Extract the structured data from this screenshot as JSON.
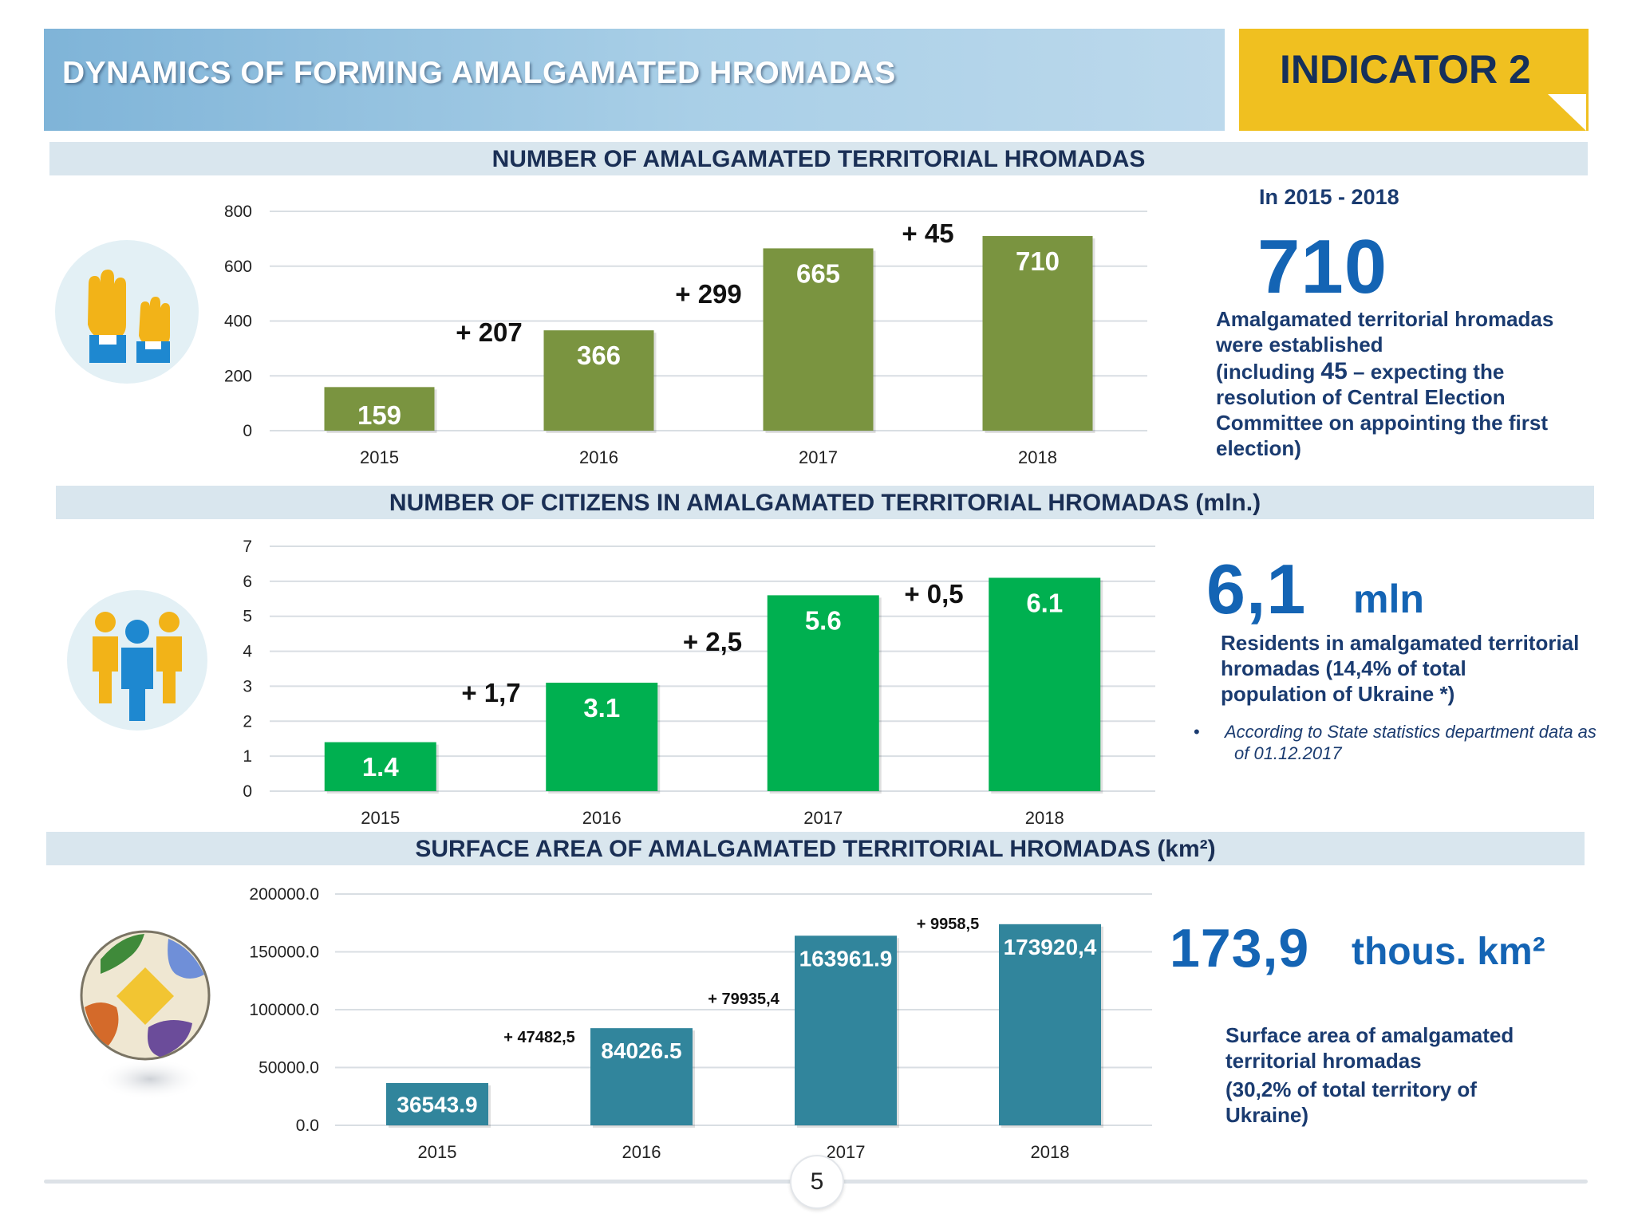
{
  "header": {
    "title": "DYNAMICS OF FORMING AMALGAMATED HROMADAS",
    "indicator": "INDICATOR 2"
  },
  "colors": {
    "green_dark": "#7a9440",
    "green_bright": "#00b050",
    "teal": "#31859c",
    "accent_blue": "#1464b4",
    "header_blue": "#8fc0e0",
    "yellow": "#f0c020"
  },
  "sections": [
    {
      "title": "NUMBER OF AMALGAMATED TERRITORIAL HROMADAS"
    },
    {
      "title": "NUMBER OF CITIZENS IN AMALGAMATED TERRITORIAL HROMADAS (mln.)"
    },
    {
      "title": "SURFACE AREA OF AMALGAMATED TERRITORIAL HROMADAS (km²)"
    }
  ],
  "stats": {
    "hromadas": {
      "period": "In 2015 - 2018",
      "value": "710",
      "desc_lines": [
        "Amalgamated territorial hromadas",
        "were established"
      ],
      "note_lines": [
        "(including ",
        "45",
        " – expecting the",
        "resolution of Central Election",
        "Committee on appointing the first",
        "election)"
      ]
    },
    "citizens": {
      "value": "6,1",
      "unit": "mln",
      "desc_lines": [
        "Residents in amalgamated territorial",
        "hromadas (14,4% of total",
        "population of Ukraine *)"
      ],
      "bullet": "•",
      "note_lines": [
        "According to State statistics department data as",
        "of 01.12.2017"
      ]
    },
    "area": {
      "value": "173,9",
      "unit": "thous. km²",
      "desc_lines": [
        "Surface area of amalgamated",
        "territorial hromadas"
      ],
      "note_lines": [
        "(30,2% of total territory of",
        "Ukraine)"
      ]
    }
  },
  "icons": [
    "raised-hands-icon",
    "people-group-icon",
    "globe-puzzle-icon"
  ],
  "page_number": "5",
  "chart_data": [
    {
      "type": "bar",
      "categories": [
        "2015",
        "2016",
        "2017",
        "2018"
      ],
      "values": [
        159,
        366,
        665,
        710
      ],
      "value_labels": [
        "159",
        "366",
        "665",
        "710"
      ],
      "increments": [
        "+ 207",
        "+ 299",
        "+ 45"
      ],
      "ylim": [
        0,
        800
      ],
      "yticks": [
        "0",
        "200",
        "400",
        "600",
        "800"
      ],
      "title": "NUMBER OF AMALGAMATED TERRITORIAL HROMADAS",
      "xlabel": "",
      "ylabel": "",
      "color": "#7a9440",
      "grid": true
    },
    {
      "type": "bar",
      "categories": [
        "2015",
        "2016",
        "2017",
        "2018"
      ],
      "values": [
        1.4,
        3.1,
        5.6,
        6.1
      ],
      "value_labels": [
        "1.4",
        "3.1",
        "5.6",
        "6.1"
      ],
      "increments": [
        "+ 1,7",
        "+ 2,5",
        "+ 0,5"
      ],
      "ylim": [
        0,
        7
      ],
      "yticks": [
        "0",
        "1",
        "2",
        "3",
        "4",
        "5",
        "6",
        "7"
      ],
      "title": "NUMBER OF CITIZENS IN AMALGAMATED TERRITORIAL HROMADAS (mln.)",
      "xlabel": "",
      "ylabel": "",
      "color": "#00b050",
      "grid": true
    },
    {
      "type": "bar",
      "categories": [
        "2015",
        "2016",
        "2017",
        "2018"
      ],
      "values": [
        36543.9,
        84026.5,
        163961.9,
        173920.4
      ],
      "value_labels": [
        "36543.9",
        "84026.5",
        "163961.9",
        "173920,4"
      ],
      "increments": [
        "+ 47482,5",
        "+ 79935,4",
        "+ 9958,5"
      ],
      "ylim": [
        0,
        200000
      ],
      "yticks": [
        "0.0",
        "50000.0",
        "100000.0",
        "150000.0",
        "200000.0"
      ],
      "title": "SURFACE AREA OF AMALGAMATED TERRITORIAL HROMADAS (km²)",
      "xlabel": "",
      "ylabel": "",
      "color": "#31859c",
      "grid": true
    }
  ]
}
